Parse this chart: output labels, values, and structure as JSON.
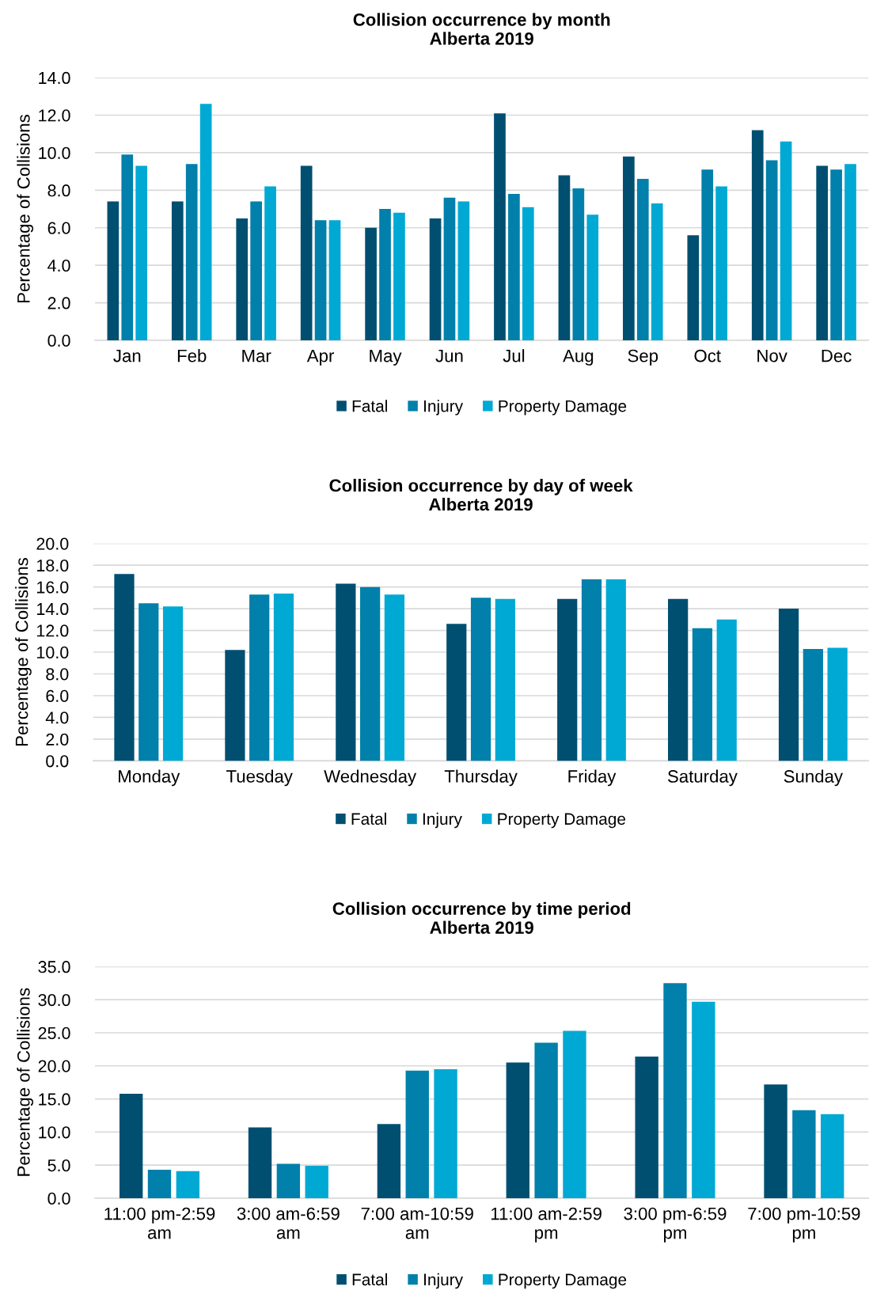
{
  "chart_data": [
    {
      "type": "bar",
      "title": "Collision occurrence by month\nAlberta 2019",
      "ylabel": "Percentage of Collisions",
      "categories": [
        "Jan",
        "Feb",
        "Mar",
        "Apr",
        "May",
        "Jun",
        "Jul",
        "Aug",
        "Sep",
        "Oct",
        "Nov",
        "Dec"
      ],
      "series": [
        {
          "name": "Fatal",
          "color": "#004f71",
          "values": [
            7.4,
            7.4,
            6.5,
            9.3,
            6.0,
            6.5,
            12.1,
            8.8,
            9.8,
            5.6,
            11.2,
            9.3
          ]
        },
        {
          "name": "Injury",
          "color": "#0080ab",
          "values": [
            9.9,
            9.4,
            7.4,
            6.4,
            7.0,
            7.6,
            7.8,
            8.1,
            8.6,
            9.1,
            9.6,
            9.1
          ]
        },
        {
          "name": "Property Damage",
          "color": "#00a9d4",
          "values": [
            9.3,
            12.6,
            8.2,
            6.4,
            6.8,
            7.4,
            7.1,
            6.7,
            7.3,
            8.2,
            10.6,
            9.4
          ]
        }
      ],
      "ylim": [
        0,
        14
      ],
      "yticks": [
        {
          "value": 0,
          "label": "0.0"
        },
        {
          "value": 2,
          "label": "2.0"
        },
        {
          "value": 4,
          "label": "4.0"
        },
        {
          "value": 6,
          "label": "6.0"
        },
        {
          "value": 8,
          "label": "8.0"
        },
        {
          "value": 10,
          "label": "10.0"
        },
        {
          "value": 12,
          "label": "12.0"
        },
        {
          "value": 14,
          "label": "14.0"
        }
      ],
      "grid": "y",
      "legend": "bottom"
    },
    {
      "type": "bar",
      "title": "Collision occurrence by day of week\nAlberta 2019",
      "ylabel": "Percentage of Collisions",
      "categories": [
        "Monday",
        "Tuesday",
        "Wednesday",
        "Thursday",
        "Friday",
        "Saturday",
        "Sunday"
      ],
      "series": [
        {
          "name": "Fatal",
          "color": "#004f71",
          "values": [
            17.2,
            10.2,
            16.3,
            12.6,
            14.9,
            14.9,
            14.0
          ]
        },
        {
          "name": "Injury",
          "color": "#0080ab",
          "values": [
            14.5,
            15.3,
            16.0,
            15.0,
            16.7,
            12.2,
            10.3
          ]
        },
        {
          "name": "Property Damage",
          "color": "#00a9d4",
          "values": [
            14.2,
            15.4,
            15.3,
            14.9,
            16.7,
            13.0,
            10.4
          ]
        }
      ],
      "ylim": [
        0,
        20
      ],
      "yticks": [
        {
          "value": 0,
          "label": "0.0"
        },
        {
          "value": 2,
          "label": "2.0"
        },
        {
          "value": 4,
          "label": "4.0"
        },
        {
          "value": 6,
          "label": "6.0"
        },
        {
          "value": 8,
          "label": "8.0"
        },
        {
          "value": 10,
          "label": "10.0"
        },
        {
          "value": 12,
          "label": "12.0"
        },
        {
          "value": 14,
          "label": "14.0"
        },
        {
          "value": 16,
          "label": "16.0"
        },
        {
          "value": 18,
          "label": "18.0"
        },
        {
          "value": 20,
          "label": "20.0"
        }
      ],
      "grid": "y",
      "legend": "bottom"
    },
    {
      "type": "bar",
      "title": "Collision occurrence by time period\nAlberta 2019",
      "ylabel": "Percentage of Collisions",
      "categories": [
        "11:00 pm-2:59\nam",
        "3:00 am-6:59\nam",
        "7:00 am-10:59\nam",
        "11:00 am-2:59\npm",
        "3:00 pm-6:59\npm",
        "7:00 pm-10:59\npm"
      ],
      "series": [
        {
          "name": "Fatal",
          "color": "#004f71",
          "values": [
            15.8,
            10.7,
            11.2,
            20.5,
            21.4,
            17.2
          ]
        },
        {
          "name": "Injury",
          "color": "#0080ab",
          "values": [
            4.3,
            5.2,
            19.3,
            23.5,
            32.5,
            13.3
          ]
        },
        {
          "name": "Property Damage",
          "color": "#00a9d4",
          "values": [
            4.1,
            4.9,
            19.5,
            25.3,
            29.7,
            12.7
          ]
        }
      ],
      "ylim": [
        0,
        35
      ],
      "yticks": [
        {
          "value": 0,
          "label": "0.0"
        },
        {
          "value": 5,
          "label": "5.0"
        },
        {
          "value": 10,
          "label": "10.0"
        },
        {
          "value": 15,
          "label": "15.0"
        },
        {
          "value": 20,
          "label": "20.0"
        },
        {
          "value": 25,
          "label": "25.0"
        },
        {
          "value": 30,
          "label": "30.0"
        },
        {
          "value": 35,
          "label": "35.0"
        }
      ],
      "grid": "y",
      "legend": "bottom"
    }
  ]
}
